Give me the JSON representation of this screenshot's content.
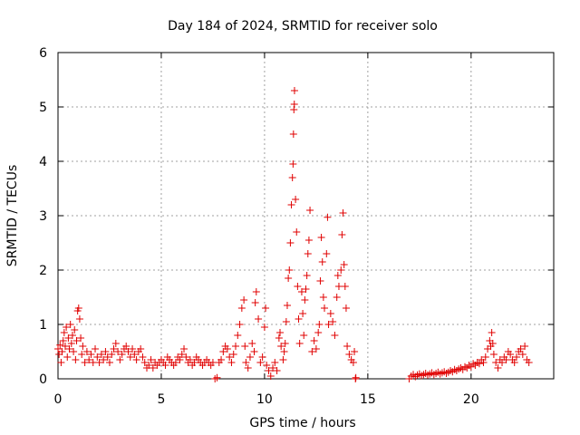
{
  "chart_data": {
    "type": "scatter",
    "title": "Day 184 of 2024, SRMTID for receiver solo",
    "xlabel": "GPS time / hours",
    "ylabel": "SRMTID / TECUs",
    "xlim": [
      0,
      24
    ],
    "ylim": [
      0,
      6
    ],
    "xticks": [
      0,
      5,
      10,
      15,
      20
    ],
    "yticks": [
      0,
      1,
      2,
      3,
      4,
      5,
      6
    ],
    "grid": true,
    "marker": "+",
    "color": "#e00000",
    "series": [
      {
        "name": "SRMTID",
        "points": [
          [
            0.0,
            0.55
          ],
          [
            0.05,
            0.45
          ],
          [
            0.1,
            0.62
          ],
          [
            0.15,
            0.3
          ],
          [
            0.2,
            0.5
          ],
          [
            0.25,
            0.7
          ],
          [
            0.3,
            0.85
          ],
          [
            0.35,
            0.6
          ],
          [
            0.4,
            0.95
          ],
          [
            0.45,
            0.4
          ],
          [
            0.5,
            0.75
          ],
          [
            0.55,
            0.55
          ],
          [
            0.6,
            1.0
          ],
          [
            0.65,
            0.65
          ],
          [
            0.7,
            0.8
          ],
          [
            0.75,
            0.5
          ],
          [
            0.8,
            0.9
          ],
          [
            0.85,
            0.35
          ],
          [
            0.9,
            0.7
          ],
          [
            0.95,
            1.25
          ],
          [
            1.0,
            1.3
          ],
          [
            1.05,
            1.1
          ],
          [
            1.1,
            0.75
          ],
          [
            1.15,
            0.45
          ],
          [
            1.2,
            0.6
          ],
          [
            1.3,
            0.3
          ],
          [
            1.4,
            0.5
          ],
          [
            1.5,
            0.35
          ],
          [
            1.6,
            0.45
          ],
          [
            1.7,
            0.3
          ],
          [
            1.8,
            0.55
          ],
          [
            1.9,
            0.4
          ],
          [
            2.0,
            0.3
          ],
          [
            2.1,
            0.45
          ],
          [
            2.2,
            0.35
          ],
          [
            2.3,
            0.5
          ],
          [
            2.4,
            0.4
          ],
          [
            2.5,
            0.3
          ],
          [
            2.6,
            0.45
          ],
          [
            2.7,
            0.55
          ],
          [
            2.8,
            0.65
          ],
          [
            2.9,
            0.5
          ],
          [
            3.0,
            0.35
          ],
          [
            3.1,
            0.45
          ],
          [
            3.2,
            0.55
          ],
          [
            3.3,
            0.6
          ],
          [
            3.4,
            0.5
          ],
          [
            3.5,
            0.4
          ],
          [
            3.6,
            0.55
          ],
          [
            3.7,
            0.45
          ],
          [
            3.8,
            0.35
          ],
          [
            3.9,
            0.5
          ],
          [
            4.0,
            0.55
          ],
          [
            4.1,
            0.4
          ],
          [
            4.2,
            0.3
          ],
          [
            4.3,
            0.2
          ],
          [
            4.4,
            0.25
          ],
          [
            4.5,
            0.35
          ],
          [
            4.6,
            0.2
          ],
          [
            4.7,
            0.3
          ],
          [
            4.8,
            0.25
          ],
          [
            4.9,
            0.3
          ],
          [
            5.0,
            0.35
          ],
          [
            5.1,
            0.3
          ],
          [
            5.2,
            0.25
          ],
          [
            5.3,
            0.4
          ],
          [
            5.4,
            0.35
          ],
          [
            5.5,
            0.3
          ],
          [
            5.6,
            0.25
          ],
          [
            5.7,
            0.3
          ],
          [
            5.8,
            0.4
          ],
          [
            5.9,
            0.35
          ],
          [
            6.0,
            0.45
          ],
          [
            6.1,
            0.55
          ],
          [
            6.2,
            0.4
          ],
          [
            6.3,
            0.3
          ],
          [
            6.4,
            0.35
          ],
          [
            6.5,
            0.25
          ],
          [
            6.6,
            0.3
          ],
          [
            6.7,
            0.4
          ],
          [
            6.8,
            0.35
          ],
          [
            6.9,
            0.3
          ],
          [
            7.0,
            0.25
          ],
          [
            7.1,
            0.3
          ],
          [
            7.2,
            0.35
          ],
          [
            7.3,
            0.3
          ],
          [
            7.4,
            0.25
          ],
          [
            7.5,
            0.3
          ],
          [
            7.6,
            0.0
          ],
          [
            7.7,
            0.02
          ],
          [
            7.8,
            0.3
          ],
          [
            7.9,
            0.35
          ],
          [
            8.0,
            0.5
          ],
          [
            8.1,
            0.6
          ],
          [
            8.2,
            0.55
          ],
          [
            8.3,
            0.4
          ],
          [
            8.4,
            0.3
          ],
          [
            8.5,
            0.45
          ],
          [
            8.6,
            0.6
          ],
          [
            8.7,
            0.8
          ],
          [
            8.8,
            1.0
          ],
          [
            8.9,
            1.3
          ],
          [
            9.0,
            1.45
          ],
          [
            9.05,
            0.6
          ],
          [
            9.1,
            0.3
          ],
          [
            9.2,
            0.2
          ],
          [
            9.3,
            0.4
          ],
          [
            9.4,
            0.65
          ],
          [
            9.5,
            0.5
          ],
          [
            9.55,
            1.4
          ],
          [
            9.6,
            1.6
          ],
          [
            9.7,
            1.1
          ],
          [
            9.8,
            0.3
          ],
          [
            9.9,
            0.4
          ],
          [
            10.0,
            0.95
          ],
          [
            10.05,
            1.3
          ],
          [
            10.1,
            0.25
          ],
          [
            10.2,
            0.15
          ],
          [
            10.3,
            0.05
          ],
          [
            10.4,
            0.2
          ],
          [
            10.5,
            0.3
          ],
          [
            10.6,
            0.15
          ],
          [
            10.7,
            0.75
          ],
          [
            10.75,
            0.85
          ],
          [
            10.8,
            0.6
          ],
          [
            10.9,
            0.35
          ],
          [
            10.95,
            0.5
          ],
          [
            11.0,
            0.65
          ],
          [
            11.05,
            1.05
          ],
          [
            11.1,
            1.35
          ],
          [
            11.15,
            1.85
          ],
          [
            11.2,
            2.0
          ],
          [
            11.25,
            2.5
          ],
          [
            11.3,
            3.2
          ],
          [
            11.35,
            3.7
          ],
          [
            11.38,
            3.95
          ],
          [
            11.4,
            4.5
          ],
          [
            11.42,
            4.95
          ],
          [
            11.44,
            5.05
          ],
          [
            11.45,
            5.3
          ],
          [
            11.5,
            3.3
          ],
          [
            11.55,
            2.7
          ],
          [
            11.6,
            1.7
          ],
          [
            11.65,
            1.1
          ],
          [
            11.7,
            0.65
          ],
          [
            11.8,
            1.6
          ],
          [
            11.85,
            1.2
          ],
          [
            11.9,
            0.8
          ],
          [
            11.95,
            1.45
          ],
          [
            12.0,
            1.65
          ],
          [
            12.05,
            1.9
          ],
          [
            12.1,
            2.3
          ],
          [
            12.15,
            2.55
          ],
          [
            12.2,
            3.1
          ],
          [
            12.3,
            0.5
          ],
          [
            12.4,
            0.7
          ],
          [
            12.5,
            0.55
          ],
          [
            12.6,
            0.85
          ],
          [
            12.65,
            1.0
          ],
          [
            12.7,
            1.8
          ],
          [
            12.75,
            2.6
          ],
          [
            12.8,
            2.15
          ],
          [
            12.85,
            1.5
          ],
          [
            12.9,
            1.3
          ],
          [
            13.0,
            2.3
          ],
          [
            13.05,
            2.97
          ],
          [
            13.1,
            1.0
          ],
          [
            13.2,
            1.2
          ],
          [
            13.3,
            1.05
          ],
          [
            13.4,
            0.8
          ],
          [
            13.5,
            1.5
          ],
          [
            13.55,
            1.9
          ],
          [
            13.6,
            1.7
          ],
          [
            13.7,
            2.0
          ],
          [
            13.75,
            2.65
          ],
          [
            13.8,
            3.05
          ],
          [
            13.85,
            2.1
          ],
          [
            13.9,
            1.7
          ],
          [
            13.95,
            1.3
          ],
          [
            14.0,
            0.6
          ],
          [
            14.1,
            0.45
          ],
          [
            14.2,
            0.35
          ],
          [
            14.3,
            0.3
          ],
          [
            14.35,
            0.5
          ],
          [
            14.4,
            0.0
          ],
          [
            14.42,
            0.02
          ],
          [
            17.0,
            0.0
          ],
          [
            17.1,
            0.05
          ],
          [
            17.2,
            0.08
          ],
          [
            17.3,
            0.04
          ],
          [
            17.4,
            0.07
          ],
          [
            17.5,
            0.09
          ],
          [
            17.6,
            0.06
          ],
          [
            17.7,
            0.08
          ],
          [
            17.8,
            0.1
          ],
          [
            17.9,
            0.07
          ],
          [
            18.0,
            0.09
          ],
          [
            18.1,
            0.11
          ],
          [
            18.2,
            0.08
          ],
          [
            18.3,
            0.1
          ],
          [
            18.4,
            0.12
          ],
          [
            18.5,
            0.09
          ],
          [
            18.6,
            0.11
          ],
          [
            18.7,
            0.13
          ],
          [
            18.8,
            0.1
          ],
          [
            18.9,
            0.12
          ],
          [
            19.0,
            0.15
          ],
          [
            19.1,
            0.13
          ],
          [
            19.2,
            0.17
          ],
          [
            19.3,
            0.15
          ],
          [
            19.4,
            0.18
          ],
          [
            19.5,
            0.2
          ],
          [
            19.6,
            0.17
          ],
          [
            19.7,
            0.22
          ],
          [
            19.8,
            0.2
          ],
          [
            19.9,
            0.25
          ],
          [
            20.0,
            0.22
          ],
          [
            20.1,
            0.28
          ],
          [
            20.2,
            0.25
          ],
          [
            20.3,
            0.3
          ],
          [
            20.4,
            0.28
          ],
          [
            20.5,
            0.35
          ],
          [
            20.6,
            0.3
          ],
          [
            20.7,
            0.4
          ],
          [
            20.8,
            0.55
          ],
          [
            20.9,
            0.7
          ],
          [
            20.95,
            0.6
          ],
          [
            21.0,
            0.85
          ],
          [
            21.05,
            0.65
          ],
          [
            21.1,
            0.45
          ],
          [
            21.2,
            0.3
          ],
          [
            21.3,
            0.2
          ],
          [
            21.4,
            0.35
          ],
          [
            21.5,
            0.3
          ],
          [
            21.6,
            0.4
          ],
          [
            21.7,
            0.35
          ],
          [
            21.8,
            0.5
          ],
          [
            21.9,
            0.45
          ],
          [
            22.0,
            0.35
          ],
          [
            22.1,
            0.3
          ],
          [
            22.2,
            0.4
          ],
          [
            22.3,
            0.5
          ],
          [
            22.4,
            0.55
          ],
          [
            22.5,
            0.45
          ],
          [
            22.6,
            0.6
          ],
          [
            22.7,
            0.35
          ],
          [
            22.8,
            0.3
          ]
        ]
      }
    ]
  }
}
